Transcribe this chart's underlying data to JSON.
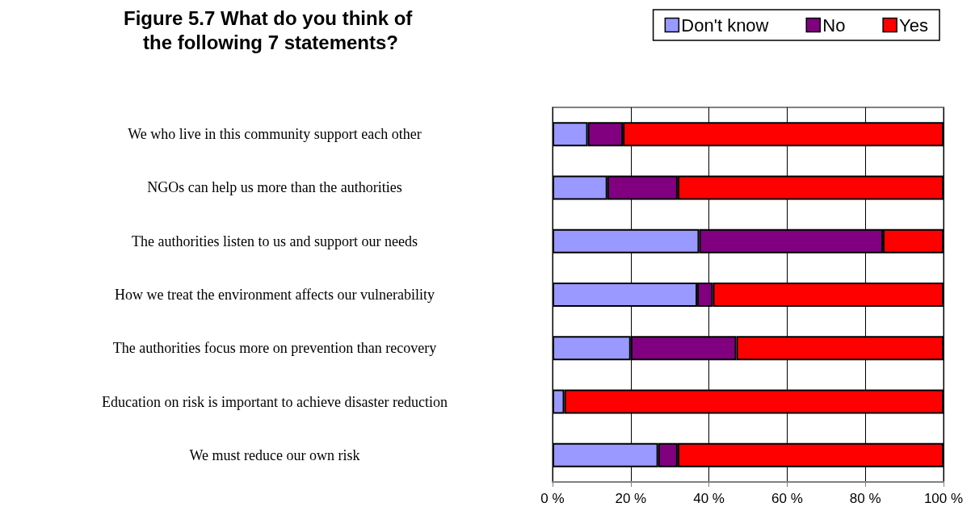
{
  "chart_data": {
    "type": "bar",
    "orientation": "horizontal",
    "stacked": true,
    "title": "Figure 5.7 What do you think of the following 7 statements?",
    "categories": [
      "We who live in this community support each other",
      "NGOs can help us more than the authorities",
      "The authorities listen to us and support our needs",
      "How we treat the environment affects our vulnerability",
      "The authorities focus more on prevention than recovery",
      "Education on risk is important to achieve disaster reduction",
      "We must reduce our own risk"
    ],
    "series": [
      {
        "name": "Don't know",
        "color": "#9999ff",
        "values": [
          9,
          14,
          37.5,
          37,
          20,
          3,
          27
        ]
      },
      {
        "name": "No",
        "color": "#800080",
        "values": [
          9,
          18,
          47,
          4,
          27,
          null,
          5
        ]
      },
      {
        "name": "Yes",
        "color": "#ff0000",
        "values": [
          82,
          68,
          15.5,
          59,
          53,
          97,
          68
        ]
      }
    ],
    "xlim": [
      0,
      100
    ],
    "xticks": [
      {
        "value": 0,
        "label": "0 %"
      },
      {
        "value": 20,
        "label": "20 %"
      },
      {
        "value": 40,
        "label": "40 %"
      },
      {
        "value": 60,
        "label": "60 %"
      },
      {
        "value": 80,
        "label": "80 %"
      },
      {
        "value": 100,
        "label": "100 %"
      }
    ],
    "grid": "x",
    "legend": "top right"
  }
}
